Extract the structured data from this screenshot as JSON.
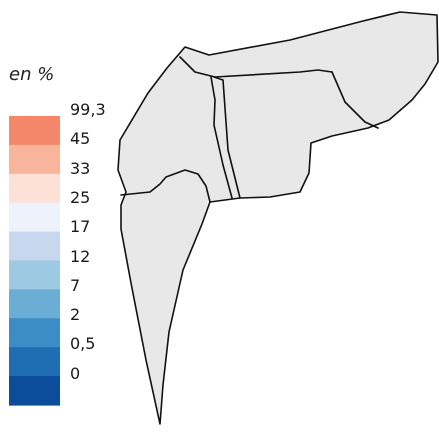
{
  "legend": {
    "title": "en %",
    "classes": [
      {
        "label": "99,3",
        "color": "#f4876a"
      },
      {
        "label": "45",
        "color": "#f9b59b"
      },
      {
        "label": "33",
        "color": "#fde1d7"
      },
      {
        "label": "25",
        "color": "#eef2fb"
      },
      {
        "label": "17",
        "color": "#c7d8ee"
      },
      {
        "label": "12",
        "color": "#9ec9e2"
      },
      {
        "label": "7",
        "color": "#6aaed6"
      },
      {
        "label": "2",
        "color": "#3c8dc6"
      },
      {
        "label": "0,5",
        "color": "#1f6db2"
      },
      {
        "label": "0",
        "color": "#0b4d9b"
      }
    ]
  },
  "map": {
    "region_fill": "#e8e8e8",
    "border_color": "#111111"
  }
}
